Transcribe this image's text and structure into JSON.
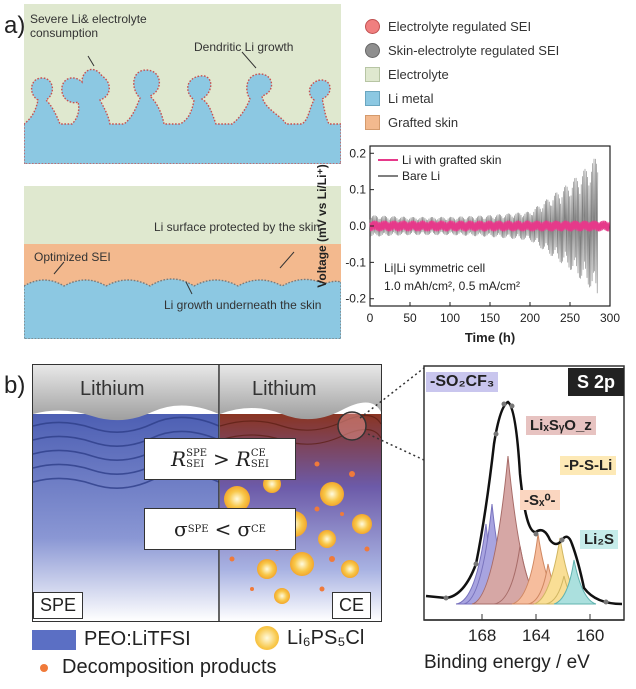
{
  "panel_a": {
    "label": "a)",
    "top_schematic": {
      "note_consumption": "Severe Li& electrolyte consumption",
      "note_dendrite": "Dendritic Li growth"
    },
    "bottom_schematic": {
      "note_protected": "Li surface protected by the skin",
      "note_sei": "Optimized SEI",
      "note_growth": "Li growth underneath the skin"
    },
    "legend": [
      {
        "label": "Electrolyte regulated SEI",
        "shape": "dot",
        "color": "#f07f7f"
      },
      {
        "label": "Skin-electrolyte regulated SEI",
        "shape": "dot",
        "color": "#8f8f8f"
      },
      {
        "label": "Electrolyte",
        "shape": "square",
        "color": "#dfe8cf"
      },
      {
        "label": "Li metal",
        "shape": "square",
        "color": "#8cc8e2"
      },
      {
        "label": "Grafted skin",
        "shape": "square",
        "color": "#f3b98e"
      }
    ]
  },
  "chart_data": {
    "type": "line",
    "xlabel": "Time (h)",
    "ylabel": "Voltage (mV vs Li/Li⁺)",
    "xlim": [
      0,
      300
    ],
    "ylim": [
      -0.22,
      0.22
    ],
    "xticks": [
      "0",
      "50",
      "100",
      "150",
      "200",
      "250",
      "300"
    ],
    "yticks": [
      "-0.2",
      "-0.1",
      "0.0",
      "0.1",
      "0.2"
    ],
    "legend_position": "top-right",
    "annotation_line1": "Li|Li symmetric cell",
    "annotation_line2": "1.0 mAh/cm², 0.5 mA/cm²",
    "series": [
      {
        "name": "Bare Li",
        "color": "#7f7f7f",
        "x": [
          0,
          50,
          100,
          150,
          200,
          225,
          250,
          275,
          285
        ],
        "amplitude": [
          0.03,
          0.025,
          0.025,
          0.03,
          0.04,
          0.08,
          0.12,
          0.17,
          0.2
        ]
      },
      {
        "name": "Li with grafted skin",
        "color": "#e6398a",
        "x": [
          0,
          300
        ],
        "amplitude": [
          0.015,
          0.015
        ]
      }
    ]
  },
  "panel_b": {
    "label": "b)",
    "left_top": "Lithium",
    "right_top": "Lithium",
    "eq1": {
      "R": "R",
      "sub": "SEI",
      "sup_left": "SPE",
      "op": ">",
      "sup_right": "CE"
    },
    "eq2": {
      "sigma": "σ",
      "sup_left": "SPE",
      "op": "<",
      "sup_right": "CE"
    },
    "tag_left": "SPE",
    "tag_right": "CE",
    "legend": [
      {
        "label": "PEO:LiTFSI",
        "shape": "bar",
        "color": "#5b6fc4"
      },
      {
        "label": "Li₆PS₅Cl",
        "shape": "sun",
        "color": "#f6b93b"
      },
      {
        "label": "Decomposition products",
        "shape": "dot",
        "color": "#f07a3a"
      }
    ],
    "xps": {
      "title": "S 2p",
      "xlabel": "Binding energy / eV",
      "xticks": [
        "168",
        "164",
        "160"
      ],
      "peaks": [
        {
          "label": "-SO₂CF₃",
          "color": "#8c86d6"
        },
        {
          "label": "LiₓSᵧO_z",
          "color": "#c98a87"
        },
        {
          "label": "-Sₓ⁰-",
          "color": "#f4a77d"
        },
        {
          "label": "-P-S-Li",
          "color": "#f8d372"
        },
        {
          "label": "Li₂S",
          "color": "#8fd6d3"
        }
      ]
    }
  }
}
